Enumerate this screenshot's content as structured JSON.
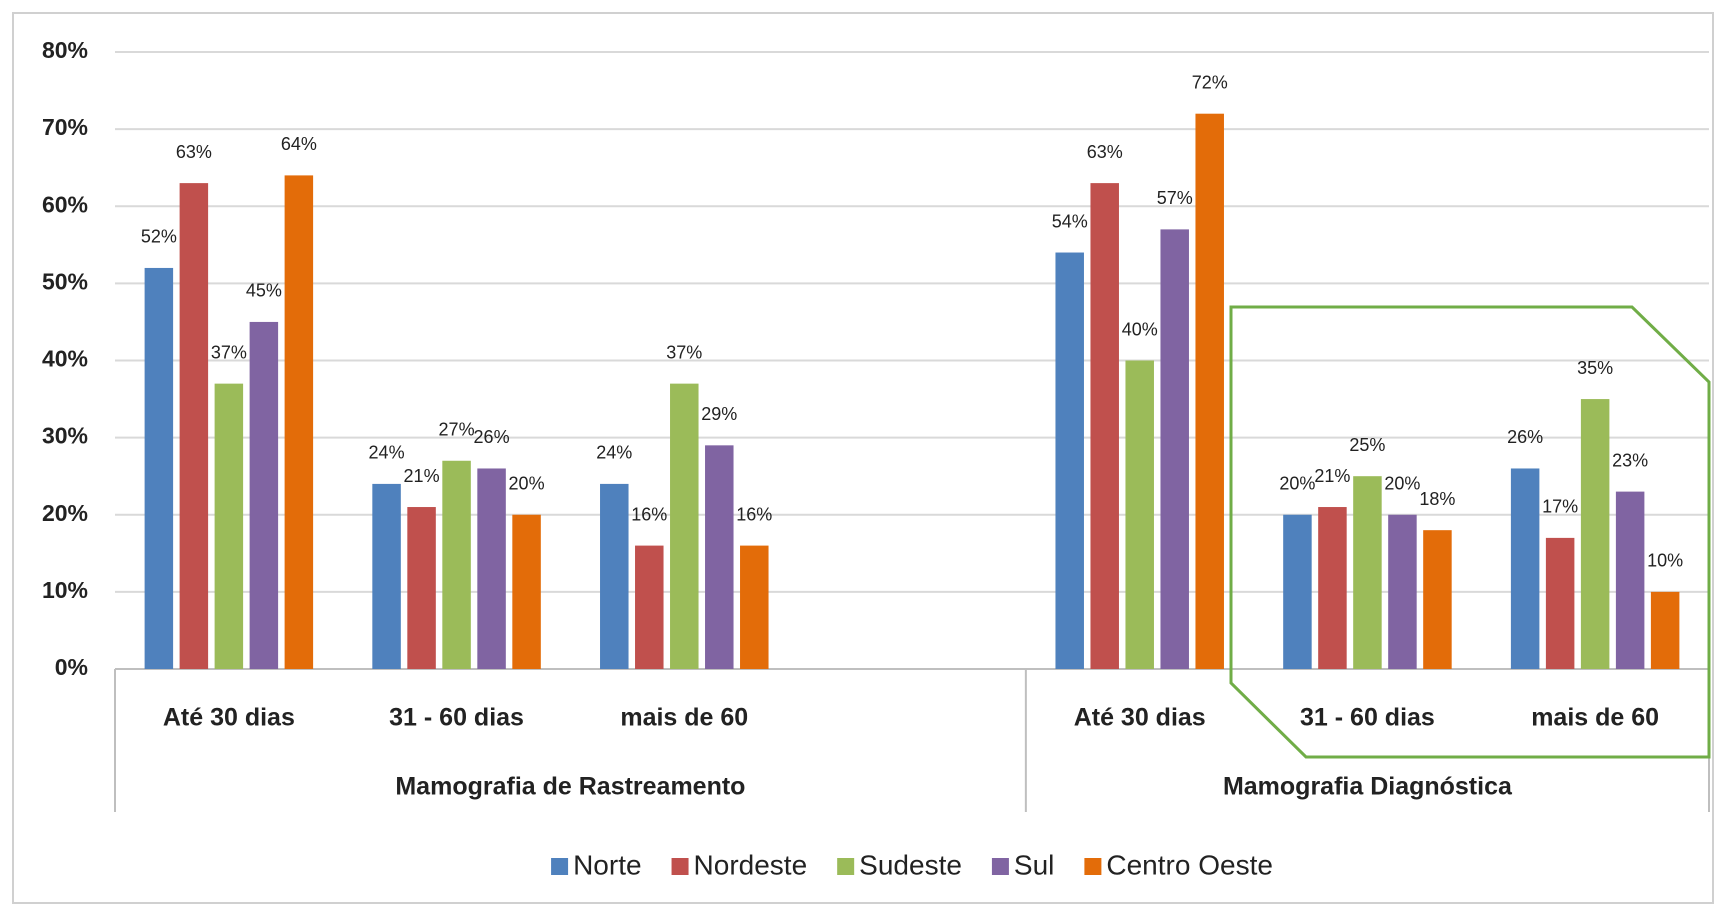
{
  "chart_data": {
    "type": "bar",
    "categories": [
      "Até 30 dias",
      "31 - 60 dias",
      "mais de 60",
      null,
      "Até 30 dias",
      "31 - 60 dias",
      "mais de 60"
    ],
    "groups": [
      {
        "label": "Mamografia de Rastreamento",
        "span": [
          0,
          3
        ]
      },
      {
        "label": "Mamografia Diagnóstica",
        "span": [
          4,
          6
        ]
      }
    ],
    "series": [
      {
        "name": "Norte",
        "color": "#4f81bd",
        "values": [
          52,
          24,
          24,
          null,
          54,
          20,
          26
        ],
        "value_labels": [
          "52%",
          "24%",
          "24%",
          null,
          "54%",
          "20%",
          "26%"
        ]
      },
      {
        "name": "Nordeste",
        "color": "#c0504d",
        "values": [
          63,
          21,
          16,
          null,
          63,
          21,
          17
        ],
        "value_labels": [
          "63%",
          "21%",
          "16%",
          null,
          "63%",
          "21%",
          "17%"
        ]
      },
      {
        "name": "Sudeste",
        "color": "#9bbb59",
        "values": [
          37,
          27,
          37,
          null,
          40,
          25,
          35
        ],
        "value_labels": [
          "37%",
          "27%",
          "37%",
          null,
          "40%",
          "25%",
          "35%"
        ]
      },
      {
        "name": "Sul",
        "color": "#8064a2",
        "values": [
          45,
          26,
          29,
          null,
          57,
          20,
          23
        ],
        "value_labels": [
          "45%",
          "26%",
          "29%",
          null,
          "57%",
          "20%",
          "23%"
        ]
      },
      {
        "name": "Centro Oeste",
        "color": "#e36c09",
        "values": [
          64,
          20,
          16,
          null,
          72,
          18,
          10
        ],
        "value_labels": [
          "64%",
          "20%",
          "16%",
          null,
          "72%",
          "18%",
          "10%"
        ]
      }
    ],
    "ylim": [
      0,
      80
    ],
    "yticks": [
      {
        "value": 0,
        "label": "0%"
      },
      {
        "value": 10,
        "label": "10%"
      },
      {
        "value": 20,
        "label": "20%"
      },
      {
        "value": 30,
        "label": "30%"
      },
      {
        "value": 40,
        "label": "40%"
      },
      {
        "value": 50,
        "label": "50%"
      },
      {
        "value": 60,
        "label": "60%"
      },
      {
        "value": 70,
        "label": "70%"
      },
      {
        "value": 80,
        "label": "80%"
      }
    ],
    "grid": true,
    "legend": "bottom"
  }
}
